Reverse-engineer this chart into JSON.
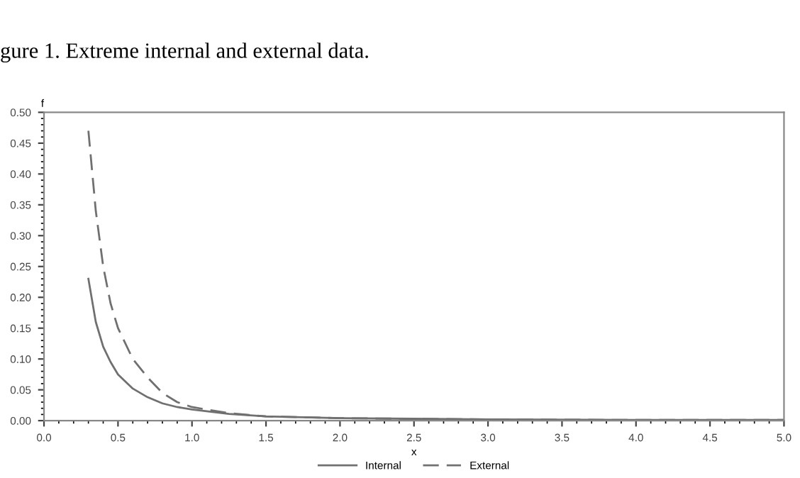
{
  "chart_data": {
    "type": "line",
    "title": "gure 1. Extreme internal and external data.",
    "xlabel": "x",
    "ylabel": "f",
    "x": [
      0.3,
      0.35,
      0.4,
      0.45,
      0.5,
      0.6,
      0.7,
      0.8,
      0.9,
      1.0,
      1.25,
      1.5,
      2.0,
      2.5,
      3.0,
      4.0,
      5.0
    ],
    "series": [
      {
        "name": "Internal",
        "color": "#707070",
        "line_style": "solid",
        "values": [
          0.23,
          0.16,
          0.12,
          0.095,
          0.075,
          0.052,
          0.038,
          0.028,
          0.022,
          0.018,
          0.011,
          0.007,
          0.004,
          0.003,
          0.002,
          0.001,
          0.001
        ]
      },
      {
        "name": "External",
        "color": "#707070",
        "line_style": "dashed",
        "values": [
          0.47,
          0.34,
          0.25,
          0.19,
          0.15,
          0.1,
          0.07,
          0.045,
          0.03,
          0.022,
          0.012,
          0.007,
          0.004,
          0.003,
          0.002,
          0.001,
          0.001
        ]
      }
    ],
    "xlim": [
      0.0,
      5.0
    ],
    "xticks": [
      {
        "value": 0,
        "label": "0.0"
      },
      0.5,
      {
        "value": 1,
        "label": "1.0"
      },
      1.5,
      {
        "value": 2,
        "label": "2.0"
      },
      2.5,
      {
        "value": 3,
        "label": "3.0"
      },
      3.5,
      {
        "value": 4,
        "label": "4.0"
      },
      4.5,
      {
        "value": 5,
        "label": "5.0"
      }
    ],
    "ylim": [
      0.0,
      0.5
    ],
    "yticks": [
      {
        "value": 0,
        "label": "0.00"
      },
      0.05,
      {
        "value": 0.1,
        "label": "0.10"
      },
      0.15,
      {
        "value": 0.2,
        "label": "0.20"
      },
      0.25,
      {
        "value": 0.3,
        "label": "0.30"
      },
      0.35,
      {
        "value": 0.4,
        "label": "0.40"
      },
      0.45,
      {
        "value": 0.5,
        "label": "0.50"
      }
    ],
    "grid": false,
    "legend": "bottom",
    "marker": "none"
  }
}
